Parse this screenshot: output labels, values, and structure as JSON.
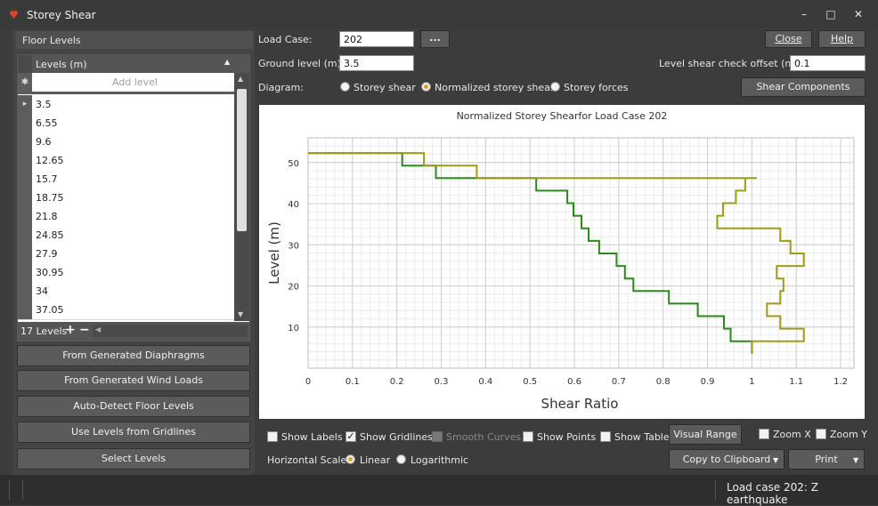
{
  "window": {
    "title": "Storey Shear",
    "min_icon": "minimize-icon",
    "max_icon": "maximize-icon",
    "close_icon": "close-icon"
  },
  "floor_levels": {
    "title": "Floor Levels",
    "column_header": "Levels (m)",
    "add_placeholder": "Add level",
    "levels": [
      "3.5",
      "6.55",
      "9.6",
      "12.65",
      "15.7",
      "18.75",
      "21.8",
      "24.85",
      "27.9",
      "30.95",
      "34",
      "37.05"
    ],
    "count_label": "17 Levels"
  },
  "side_buttons": [
    "From Generated Diaphragms",
    "From Generated Wind Loads",
    "Auto-Detect Floor Levels",
    "Use Levels from Gridlines",
    "Select Levels"
  ],
  "form": {
    "load_case_label": "Load Case:",
    "load_case_value": "202",
    "browse_label": "...",
    "ground_label": "Ground level (m):",
    "ground_value": "3.5",
    "offset_label": "Level shear check offset (m):",
    "offset_value": "0.1",
    "diagram_label": "Diagram:",
    "diagram_options": [
      "Storey shear",
      "Normalized storey shear",
      "Storey forces"
    ],
    "close_label": "Close",
    "help_label": "Help",
    "shear_components_label": "Shear Components"
  },
  "options": {
    "show_labels": "Show Labels",
    "show_gridlines": "Show Gridlines",
    "smooth_curves": "Smooth Curves",
    "show_points": "Show Points",
    "show_table": "Show Table",
    "visual_range": "Visual Range",
    "zoom_x": "Zoom X",
    "zoom_y": "Zoom Y",
    "horizontal_scale_label": "Horizontal Scale:",
    "linear": "Linear",
    "logarithmic": "Logarithmic",
    "copy_label": "Copy to Clipboard",
    "print_label": "Print"
  },
  "status": {
    "text": "Load case 202: Z earthquake"
  },
  "colors": {
    "series_1": "#2a8a1a",
    "series_2": "#a09a1a",
    "accent": "#e0a020"
  },
  "chart_data": {
    "type": "line",
    "title": "Normalized Storey Shearfor Load Case 202",
    "xlabel": "Shear Ratio",
    "ylabel": "Level (m)",
    "xlim": [
      0,
      1.23
    ],
    "ylim": [
      0,
      56
    ],
    "xticks": [
      0,
      0.1,
      0.2,
      0.3,
      0.4,
      0.5,
      0.6,
      0.7,
      0.8,
      0.9,
      1,
      1.1,
      1.2
    ],
    "yticks": [
      10,
      20,
      30,
      40,
      50
    ],
    "grid": true,
    "series": [
      {
        "x": [
          1.0,
          1.0,
          0.952,
          0.952,
          0.937,
          0.937,
          0.878,
          0.878,
          0.813,
          0.813,
          0.733,
          0.733,
          0.714,
          0.714,
          0.695,
          0.695,
          0.656,
          0.656,
          0.632,
          0.632,
          0.616,
          0.616,
          0.598,
          0.598,
          0.584,
          0.584,
          0.514,
          0.514,
          0.288,
          0.288,
          0.212,
          0.212,
          0.134,
          0.134,
          0.0
        ],
        "y": [
          3.5,
          6.55,
          6.55,
          9.6,
          9.6,
          12.65,
          12.65,
          15.7,
          15.7,
          18.75,
          18.75,
          21.8,
          21.8,
          24.85,
          24.85,
          27.9,
          27.9,
          30.95,
          30.95,
          34,
          34,
          37.05,
          37.05,
          40.1,
          40.1,
          43.15,
          43.15,
          46.2,
          46.2,
          49.25,
          49.25,
          52.3,
          52.3,
          52.3,
          52.3
        ]
      },
      {
        "x": [
          1.0,
          1.0,
          1.117,
          1.117,
          1.064,
          1.064,
          1.034,
          1.034,
          1.064,
          1.064,
          1.071,
          1.071,
          1.056,
          1.056,
          1.117,
          1.117,
          1.087,
          1.087,
          1.064,
          1.064,
          1.034,
          1.034,
          0.922,
          0.922,
          0.935,
          0.935,
          0.964,
          0.964,
          0.985,
          0.985,
          1.011,
          1.011,
          0.38,
          0.38,
          0.261,
          0.261,
          0.0
        ],
        "y": [
          3.5,
          6.55,
          6.55,
          9.6,
          9.6,
          12.65,
          12.65,
          15.7,
          15.7,
          18.75,
          18.75,
          21.8,
          21.8,
          24.85,
          24.85,
          27.9,
          27.9,
          30.95,
          30.95,
          34,
          34,
          34,
          34,
          37.05,
          37.05,
          40.1,
          40.1,
          43.15,
          43.15,
          46.2,
          46.2,
          46.2,
          46.2,
          49.25,
          49.25,
          52.3,
          52.3
        ]
      }
    ]
  }
}
